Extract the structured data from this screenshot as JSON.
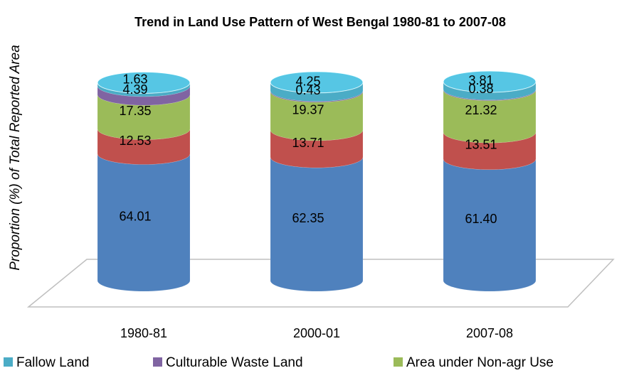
{
  "chart_data": {
    "type": "cylinder-stack",
    "title": "Trend in Land Use Pattern of West Bengal 1980-81 to 2007-08",
    "y_label": "Proportion (%) of Total Reported Area",
    "categories": [
      "1980-81",
      "2000-01",
      "2007-08"
    ],
    "series": [
      {
        "color": "#4f81bd",
        "values": [
          64.01,
          62.35,
          61.4
        ],
        "value_labels": [
          "64.01",
          "62.35",
          "61.40"
        ]
      },
      {
        "color": "#c0504d",
        "values": [
          12.53,
          13.71,
          13.51
        ]
      },
      {
        "name": "Area under Non-agr Use",
        "color": "#9bbb59",
        "values": [
          17.35,
          19.37,
          21.32
        ]
      },
      {
        "name": "Culturable Waste Land",
        "color": "#8064a2",
        "values": [
          4.39,
          0.43,
          0.38
        ]
      },
      {
        "name": "Fallow Land",
        "color": "#4bacc6",
        "values": [
          1.63,
          4.25,
          3.81
        ]
      }
    ],
    "legend_order": [
      4,
      3,
      2
    ]
  }
}
